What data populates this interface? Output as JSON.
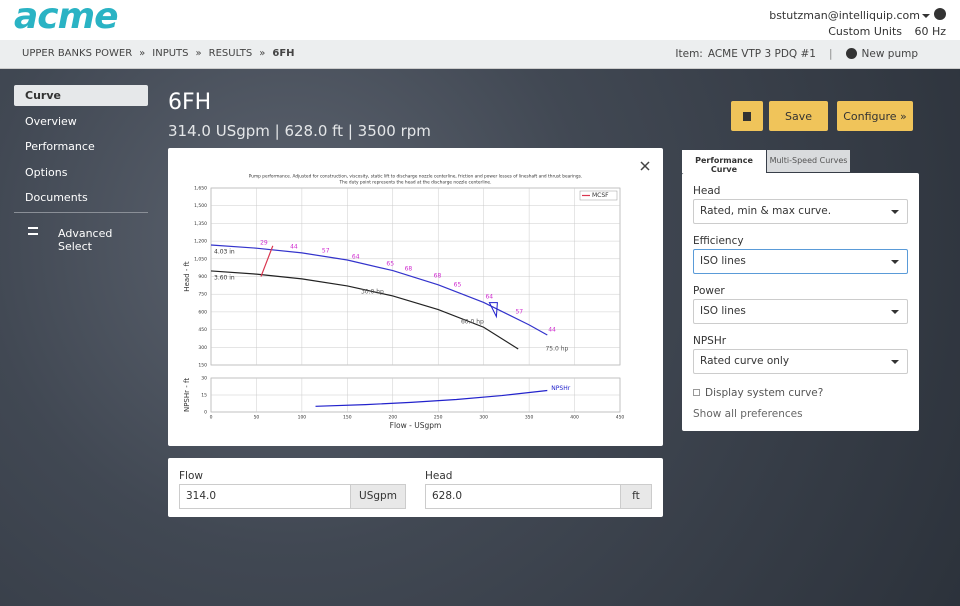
{
  "header": {
    "logo": "acme",
    "user": "bstutzman@intelliquip.com",
    "units": "Custom Units",
    "frequency": "60 Hz"
  },
  "breadcrumb": {
    "items": [
      "UPPER BANKS POWER",
      "INPUTS",
      "RESULTS",
      "6FH"
    ],
    "separator": "»"
  },
  "item": {
    "label": "Item:",
    "name": "ACME VTP 3 PDQ #1",
    "new_pump": "New pump"
  },
  "sidebar": {
    "items": [
      "Curve",
      "Overview",
      "Performance",
      "Options",
      "Documents"
    ],
    "advanced": "Advanced Select"
  },
  "pump": {
    "name": "6FH",
    "summary": "314.0 USgpm | 628.0 ft | 3500 rpm"
  },
  "buttons": {
    "save": "Save",
    "configure": "Configure »"
  },
  "chart_data": [
    {
      "type": "line",
      "title": [
        "Pump performance. Adjusted for construction, viscosity, static lift to discharge nozzle centerline, friction and power losses of lineshaft and thrust bearings.",
        "The duty point represents the head at the discharge nozzle centerline."
      ],
      "y_label": "Head - ft",
      "grid": true,
      "xlim": [
        0,
        450
      ],
      "xticks": [
        0,
        50,
        100,
        150,
        200,
        250,
        300,
        350,
        400,
        450
      ],
      "ylim": [
        150,
        1650
      ],
      "yticks": [
        150,
        300,
        450,
        600,
        750,
        900,
        {
          "value": 1050,
          "label": "1,050"
        },
        {
          "value": 1200,
          "label": "1,200"
        },
        {
          "value": 1350,
          "label": "1,350"
        },
        {
          "value": 1500,
          "label": "1,500"
        },
        {
          "value": 1650,
          "label": "1,650"
        }
      ],
      "series": [
        {
          "name": "4.03 in",
          "label": "inline",
          "color": "#3333cc",
          "x": [
            0,
            50,
            100,
            150,
            200,
            250,
            300,
            350,
            370
          ],
          "values": [
            1167,
            1140,
            1100,
            1040,
            950,
            830,
            680,
            490,
            404
          ]
        },
        {
          "name": "3.60 in",
          "label": "inline",
          "color": "#222222",
          "x": [
            0,
            50,
            100,
            150,
            200,
            250,
            300,
            338
          ],
          "values": [
            947,
            920,
            880,
            820,
            735,
            620,
            470,
            286
          ]
        },
        {
          "name": "MCSF",
          "label": "legend",
          "color": "#d9364f",
          "x": [
            55,
            60,
            68
          ],
          "values": [
            900,
            1000,
            1160
          ]
        }
      ],
      "annotations": [
        {
          "text": "29",
          "x": 54,
          "y": 1184,
          "color": "#d02cd0"
        },
        {
          "text": "44",
          "x": 87,
          "y": 1150,
          "color": "#d02cd0"
        },
        {
          "text": "57",
          "x": 122,
          "y": 1116,
          "color": "#d02cd0"
        },
        {
          "text": "64",
          "x": 155,
          "y": 1065,
          "color": "#d02cd0"
        },
        {
          "text": "65",
          "x": 193,
          "y": 1006,
          "color": "#d02cd0"
        },
        {
          "text": "68",
          "x": 213,
          "y": 964,
          "color": "#d02cd0"
        },
        {
          "text": "68",
          "x": 245,
          "y": 905,
          "color": "#d02cd0"
        },
        {
          "text": "65",
          "x": 267,
          "y": 828,
          "color": "#d02cd0"
        },
        {
          "text": "64",
          "x": 302,
          "y": 726,
          "color": "#d02cd0"
        },
        {
          "text": "57",
          "x": 335,
          "y": 599,
          "color": "#d02cd0"
        },
        {
          "text": "44",
          "x": 371,
          "y": 447,
          "color": "#d02cd0"
        },
        {
          "text": "30.0 hp",
          "x": 165,
          "y": 769,
          "color": "#555555"
        },
        {
          "text": "60.0 hp",
          "x": 275,
          "y": 514,
          "color": "#555555"
        },
        {
          "text": "75.0 hp",
          "x": 368,
          "y": 286,
          "color": "#555555"
        }
      ],
      "duty_point": {
        "x": 314,
        "y": 628,
        "color": "#2222cc"
      }
    },
    {
      "type": "line",
      "y_label": "NPSHr - ft",
      "x_label": "Flow - USgpm",
      "grid": true,
      "xlim": [
        0,
        450
      ],
      "xticks": [
        0,
        50,
        100,
        150,
        200,
        250,
        300,
        350,
        400,
        450
      ],
      "ylim": [
        0,
        30
      ],
      "yticks": [
        0,
        15,
        30
      ],
      "series": [
        {
          "name": "NPSHr",
          "label": "end",
          "color": "#2222cc",
          "x": [
            115,
            170,
            220,
            270,
            320,
            370
          ],
          "values": [
            5,
            6.5,
            8.5,
            11,
            14.5,
            19
          ]
        }
      ]
    }
  ],
  "preferences": {
    "tabs": [
      "Performance Curve",
      "Multi-Speed Curves"
    ],
    "fields": [
      {
        "label": "Head",
        "value": "Rated, min & max curve."
      },
      {
        "label": "Efficiency",
        "value": "ISO lines"
      },
      {
        "label": "Power",
        "value": "ISO lines"
      },
      {
        "label": "NPSHr",
        "value": "Rated curve only"
      }
    ],
    "checkbox": "Display system curve?",
    "link": "Show all preferences"
  },
  "duty": {
    "flow_label": "Flow",
    "flow": "314.0",
    "flow_unit": "USgpm",
    "head_label": "Head",
    "head": "628.0",
    "head_unit": "ft"
  }
}
